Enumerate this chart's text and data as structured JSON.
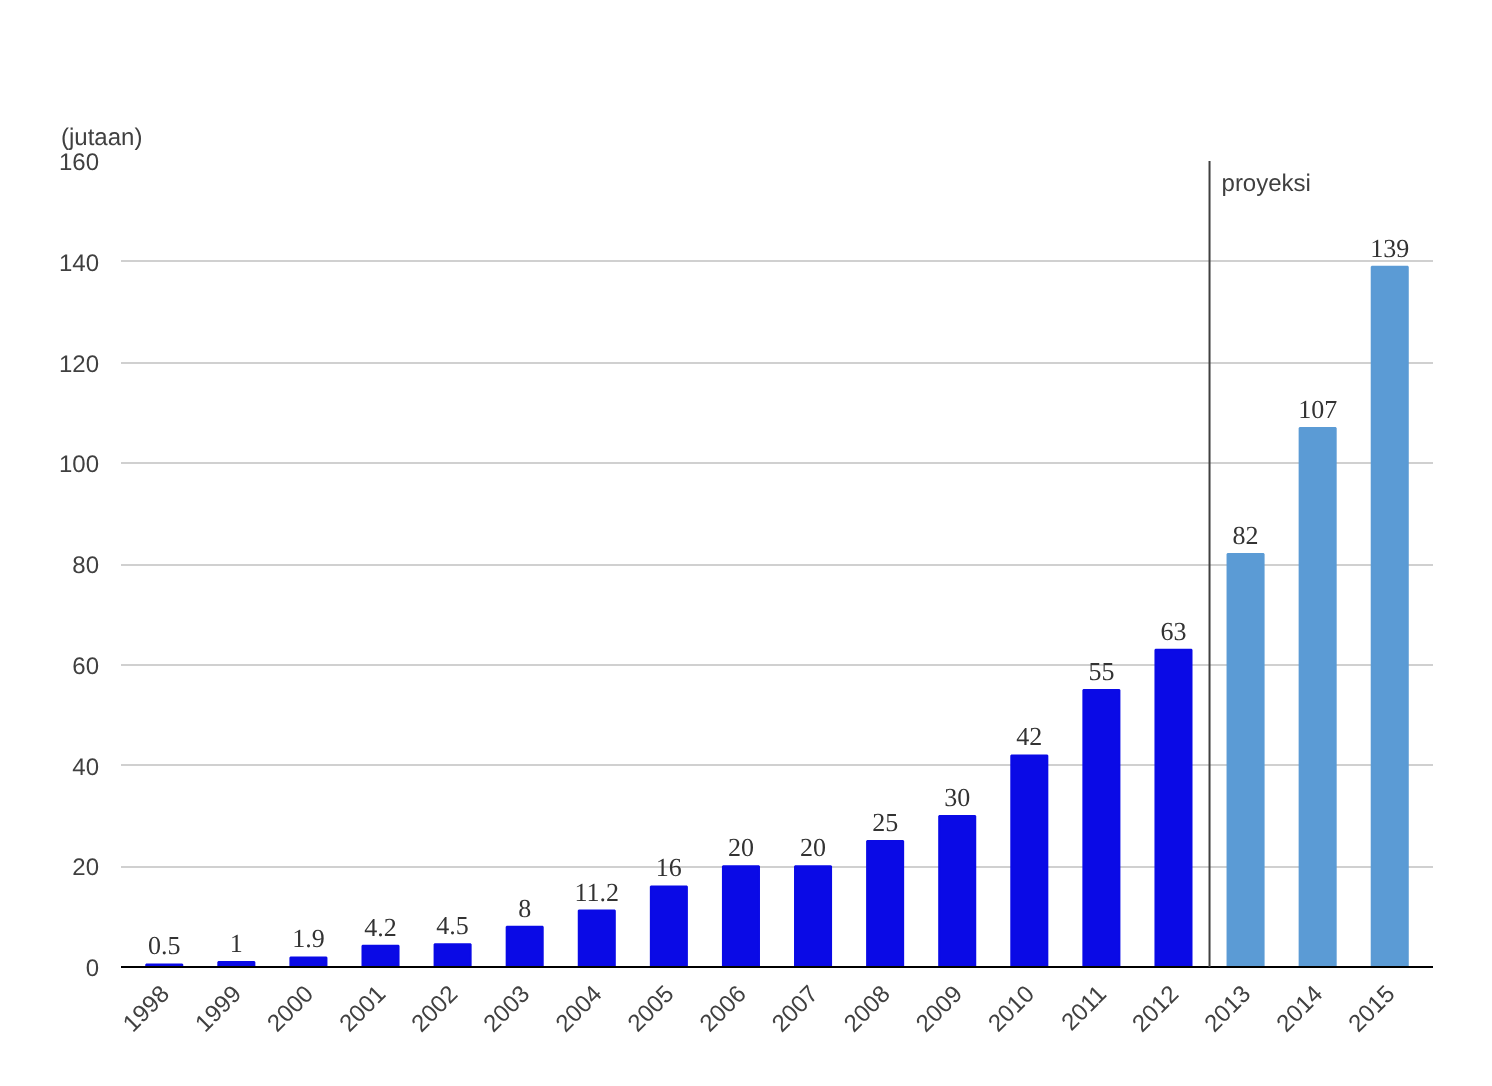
{
  "chart_data": {
    "type": "bar",
    "ylabel": "(jutaan)",
    "categories": [
      "1998",
      "1999",
      "2000",
      "2001",
      "2002",
      "2003",
      "2004",
      "2005",
      "2006",
      "2007",
      "2008",
      "2009",
      "2010",
      "2011",
      "2012",
      "2013",
      "2014",
      "2015"
    ],
    "values": [
      0.5,
      1,
      1.9,
      4.2,
      4.5,
      8,
      11.2,
      16,
      20,
      20,
      25,
      30,
      42,
      55,
      63,
      82,
      107,
      139
    ],
    "colors": [
      "#0a0ae6",
      "#0a0ae6",
      "#0a0ae6",
      "#0a0ae6",
      "#0a0ae6",
      "#0a0ae6",
      "#0a0ae6",
      "#0a0ae6",
      "#0a0ae6",
      "#0a0ae6",
      "#0a0ae6",
      "#0a0ae6",
      "#0a0ae6",
      "#0a0ae6",
      "#0a0ae6",
      "#5b9bd5",
      "#5b9bd5",
      "#5b9bd5"
    ],
    "ylim": [
      0,
      160
    ],
    "yticks": [
      0,
      20,
      40,
      60,
      80,
      100,
      120,
      140,
      160
    ],
    "grid": "y",
    "data_labels": true,
    "ref_lines": [
      {
        "axis": "x",
        "value": "2013",
        "label": "proyeksi",
        "color": "#404040"
      }
    ]
  }
}
